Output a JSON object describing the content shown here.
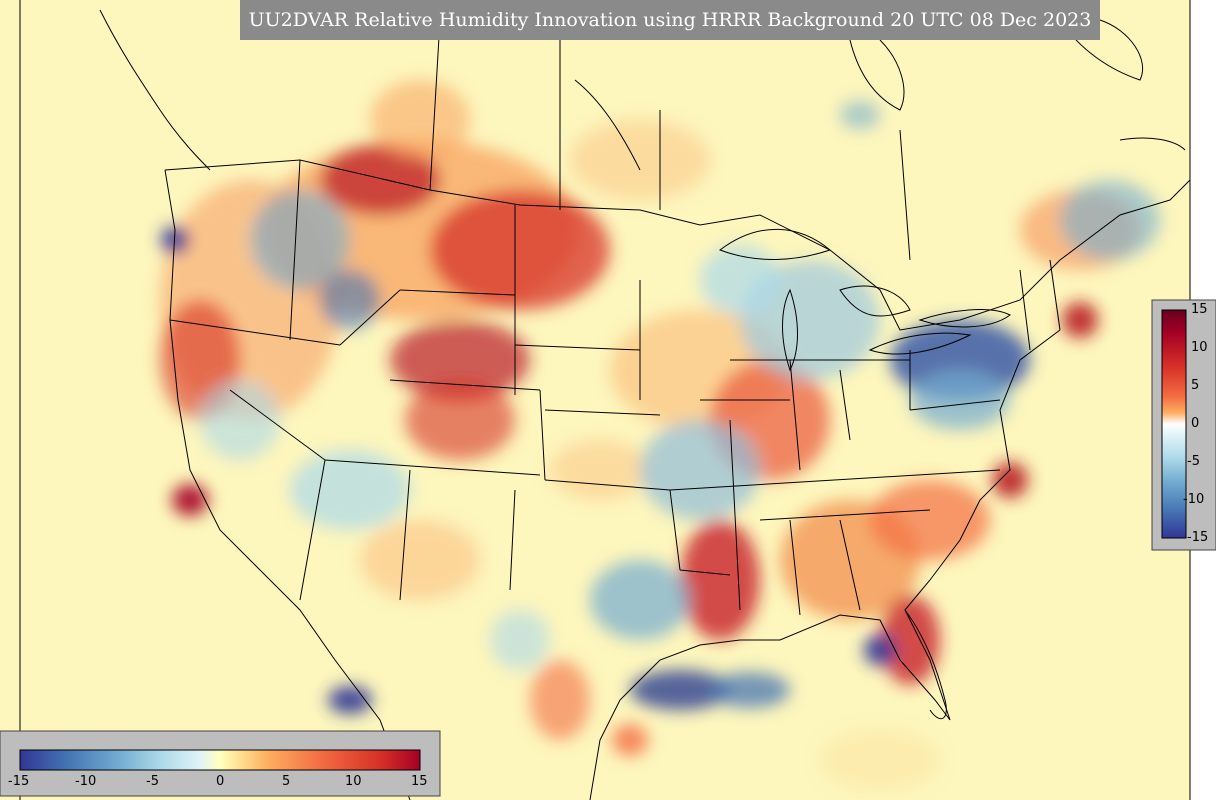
{
  "title": "UU2DVAR Relative Humidity Innovation using HRRR Background 20 UTC 08 Dec 2023",
  "colorbar": {
    "vertical_ticks": [
      "15",
      "10",
      "5",
      "0",
      "-5",
      "-10",
      "-15"
    ],
    "horizontal_ticks": [
      "-15",
      "-10",
      "-5",
      "0",
      "5",
      "10",
      "15"
    ],
    "range": [
      -15,
      15
    ],
    "palette": [
      "#313695",
      "#4575b4",
      "#74add1",
      "#abd9e9",
      "#e0f3f8",
      "#ffffbf",
      "#fee090",
      "#fdae61",
      "#f46d43",
      "#d73027",
      "#a50026"
    ]
  },
  "map": {
    "region": "CONUS",
    "background_color": "#fdf8bf"
  }
}
